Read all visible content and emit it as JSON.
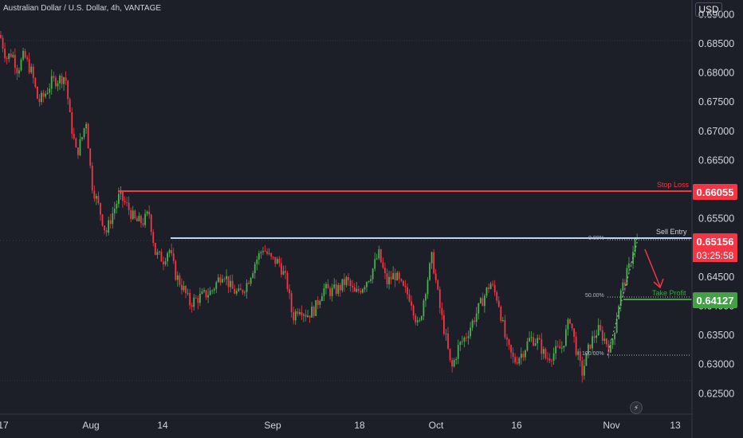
{
  "header": {
    "title": "Australian Dollar / U.S. Dollar, 4h, VANTAGE"
  },
  "price_axis": {
    "currency": "USD",
    "ticks": [
      "0.69000",
      "0.68500",
      "0.68000",
      "0.67500",
      "0.67000",
      "0.66500",
      "0.66000",
      "0.65500",
      "0.65000",
      "0.64500",
      "0.64000",
      "0.63500",
      "0.63000",
      "0.62500"
    ],
    "tick_values": [
      0.69,
      0.685,
      0.68,
      0.675,
      0.67,
      0.665,
      0.66,
      0.655,
      0.65,
      0.645,
      0.64,
      0.635,
      0.63,
      0.625
    ]
  },
  "time_axis": {
    "ticks": [
      "17",
      "Aug",
      "14",
      "Sep",
      "18",
      "Oct",
      "16",
      "Nov",
      "13"
    ]
  },
  "levels": {
    "stop_loss": {
      "label": "Stop Loss",
      "price": "0.66055",
      "color": "#f23645"
    },
    "sell_entry": {
      "label": "Sell Entry",
      "price": "0.65156",
      "countdown": "03:25:58",
      "color": "#f23645",
      "line_color": "#bcd6f5"
    },
    "take_profit": {
      "label": "Take Profit",
      "price": "0.64127",
      "color": "#43a047"
    }
  },
  "fibonacci": {
    "level_0": "0.00%",
    "level_50": "50.00%",
    "level_100": "100.00%"
  },
  "colors": {
    "background": "#1c1f28",
    "up": "#4caf50",
    "down": "#f23645",
    "grid": "#2a2e39"
  },
  "chart_data": {
    "type": "candlestick",
    "symbol": "AUDUSD",
    "timeframe": "4h",
    "ylim": [
      0.6215,
      0.6925
    ],
    "path_anchors": [
      [
        0,
        0.6865
      ],
      [
        8,
        0.6825
      ],
      [
        15,
        0.6835
      ],
      [
        22,
        0.6805
      ],
      [
        30,
        0.683
      ],
      [
        40,
        0.68
      ],
      [
        48,
        0.675
      ],
      [
        55,
        0.676
      ],
      [
        65,
        0.6785
      ],
      [
        75,
        0.679
      ],
      [
        82,
        0.6795
      ],
      [
        88,
        0.672
      ],
      [
        96,
        0.666
      ],
      [
        103,
        0.669
      ],
      [
        108,
        0.672
      ],
      [
        115,
        0.661
      ],
      [
        125,
        0.6565
      ],
      [
        133,
        0.6525
      ],
      [
        140,
        0.6555
      ],
      [
        150,
        0.659
      ],
      [
        160,
        0.657
      ],
      [
        170,
        0.6545
      ],
      [
        180,
        0.6545
      ],
      [
        187,
        0.656
      ],
      [
        195,
        0.649
      ],
      [
        205,
        0.648
      ],
      [
        212,
        0.65
      ],
      [
        220,
        0.6455
      ],
      [
        230,
        0.643
      ],
      [
        238,
        0.6405
      ],
      [
        250,
        0.6415
      ],
      [
        265,
        0.6425
      ],
      [
        280,
        0.646
      ],
      [
        290,
        0.643
      ],
      [
        300,
        0.642
      ],
      [
        310,
        0.644
      ],
      [
        320,
        0.6475
      ],
      [
        330,
        0.65
      ],
      [
        340,
        0.648
      ],
      [
        350,
        0.6475
      ],
      [
        360,
        0.644
      ],
      [
        367,
        0.638
      ],
      [
        375,
        0.64
      ],
      [
        385,
        0.6385
      ],
      [
        395,
        0.6395
      ],
      [
        405,
        0.643
      ],
      [
        415,
        0.6425
      ],
      [
        425,
        0.643
      ],
      [
        435,
        0.6445
      ],
      [
        445,
        0.642
      ],
      [
        455,
        0.6435
      ],
      [
        465,
        0.6455
      ],
      [
        475,
        0.649
      ],
      [
        485,
        0.644
      ],
      [
        495,
        0.6455
      ],
      [
        505,
        0.643
      ],
      [
        515,
        0.6415
      ],
      [
        525,
        0.636
      ],
      [
        533,
        0.6425
      ],
      [
        542,
        0.6485
      ],
      [
        552,
        0.6395
      ],
      [
        560,
        0.634
      ],
      [
        566,
        0.629
      ],
      [
        575,
        0.633
      ],
      [
        585,
        0.635
      ],
      [
        595,
        0.638
      ],
      [
        605,
        0.641
      ],
      [
        615,
        0.644
      ],
      [
        625,
        0.641
      ],
      [
        635,
        0.6335
      ],
      [
        645,
        0.6305
      ],
      [
        655,
        0.632
      ],
      [
        665,
        0.6345
      ],
      [
        675,
        0.634
      ],
      [
        685,
        0.631
      ],
      [
        695,
        0.632
      ],
      [
        705,
        0.633
      ],
      [
        715,
        0.638
      ],
      [
        722,
        0.633
      ],
      [
        730,
        0.6285
      ],
      [
        740,
        0.6335
      ],
      [
        750,
        0.636
      ],
      [
        760,
        0.634
      ],
      [
        766,
        0.6325
      ],
      [
        772,
        0.637
      ],
      [
        778,
        0.642
      ],
      [
        784,
        0.6445
      ],
      [
        790,
        0.647
      ],
      [
        795,
        0.6505
      ],
      [
        800,
        0.6515
      ]
    ]
  }
}
